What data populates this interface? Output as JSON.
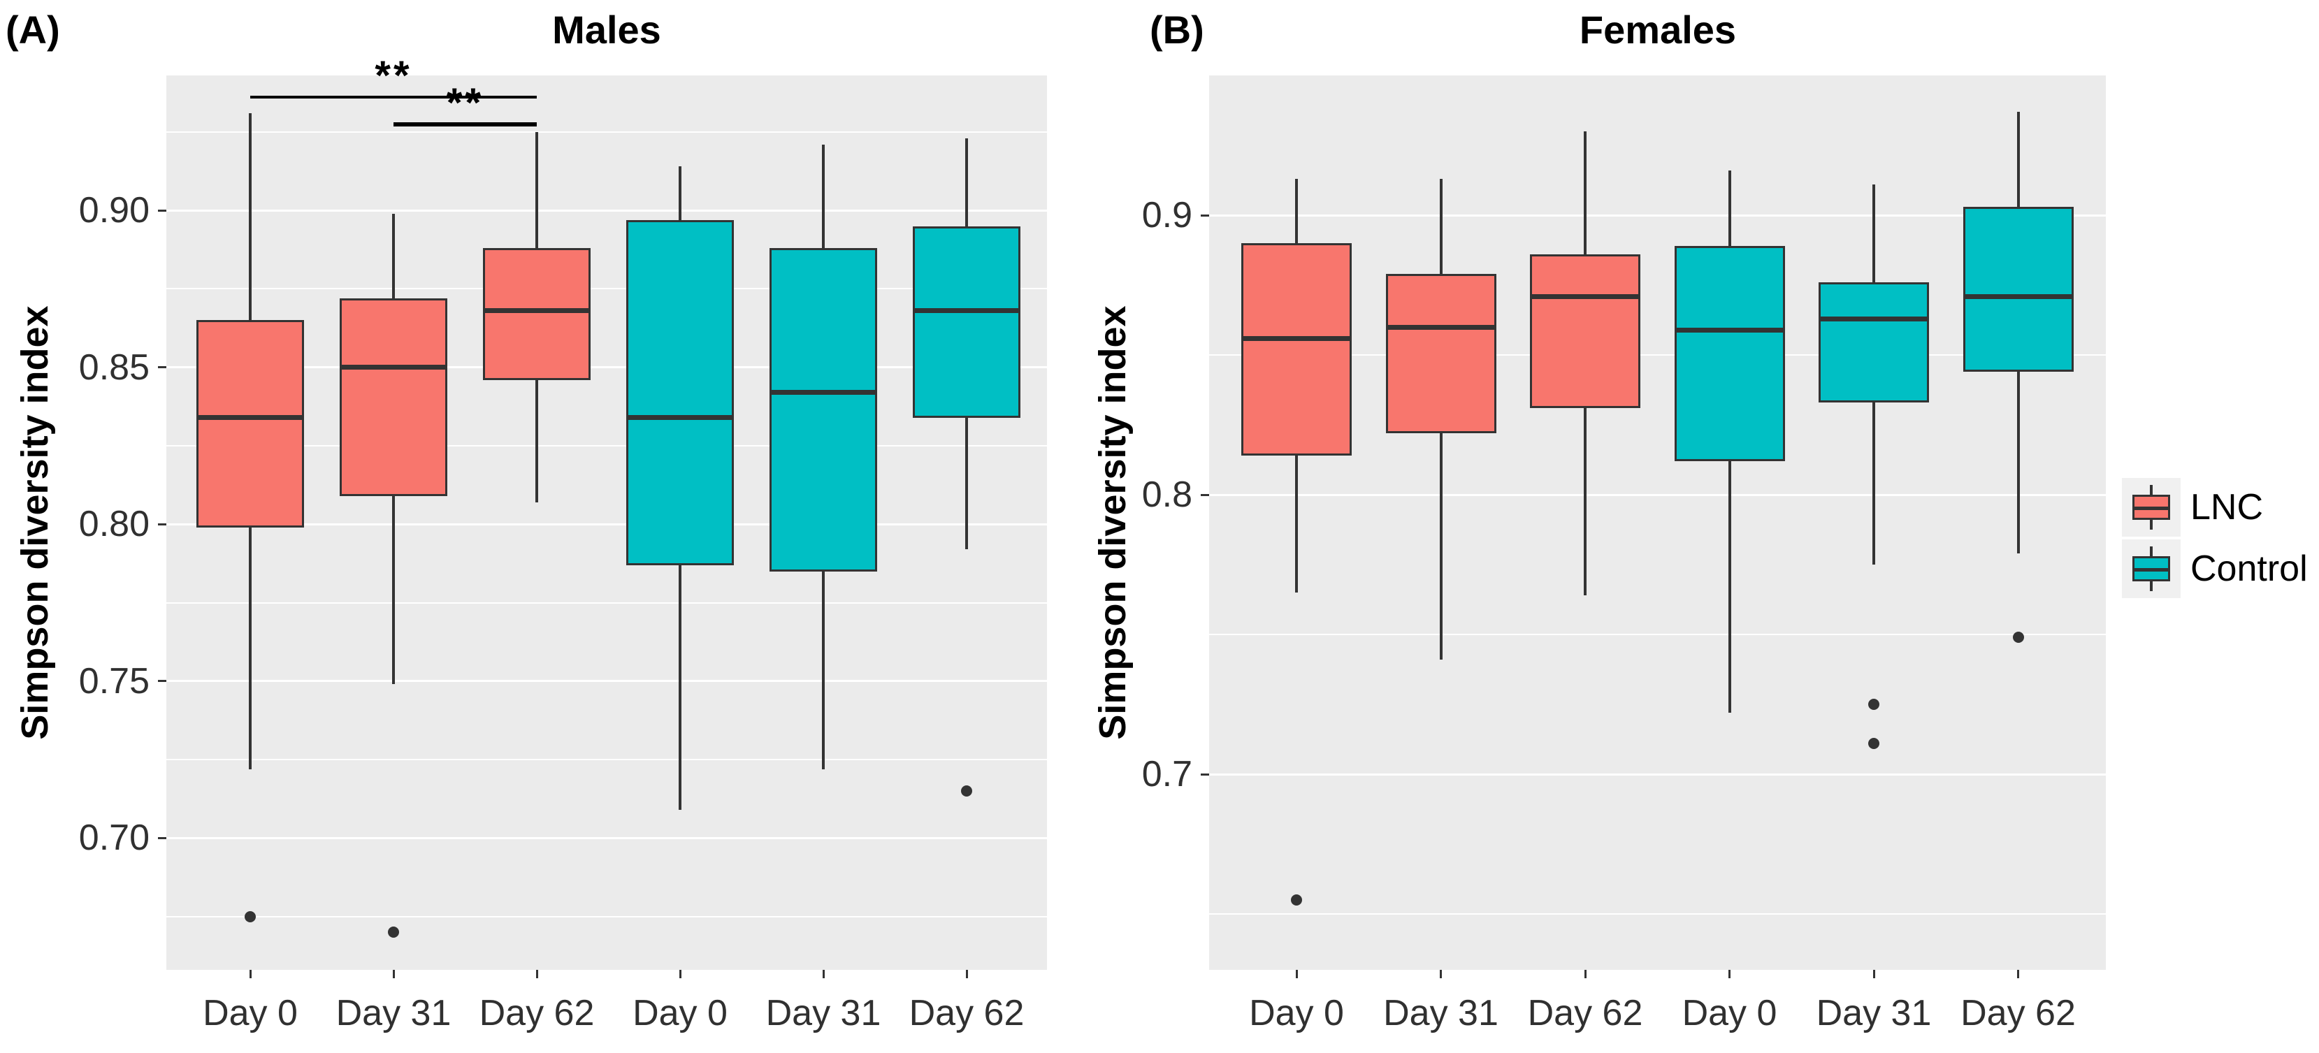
{
  "chart_data": {
    "type": "boxplot",
    "figure_kind": "two-panel grouped boxplot, ggplot grey theme",
    "legend": {
      "position": "right",
      "entries": [
        {
          "label": "LNC",
          "color": "#F8766D"
        },
        {
          "label": "Control",
          "color": "#00BFC4"
        }
      ]
    },
    "colors": {
      "lnc_fill": "#F8766D",
      "control_fill": "#00BFC4",
      "box_border": "#333333",
      "panel_background": "#EBEBEB",
      "gridline": "#FFFFFF",
      "tick_text": "#303030",
      "outlier_dot": "#333333",
      "legend_key_background": "#F0F0F0"
    },
    "panels": [
      {
        "panel_label": "(A)",
        "title": "Males",
        "ylabel": "Simpson diversity index",
        "grid": true,
        "ylim": [
          0.658,
          0.943
        ],
        "y_ticks": [
          {
            "value": 0.7,
            "label": "0.70"
          },
          {
            "value": 0.75,
            "label": "0.75"
          },
          {
            "value": 0.8,
            "label": "0.80"
          },
          {
            "value": 0.85,
            "label": "0.85"
          },
          {
            "value": 0.9,
            "label": "0.90"
          }
        ],
        "x_tick_labels": [
          "Day 0",
          "Day 31",
          "Day 62",
          "Day 0",
          "Day 31",
          "Day 62"
        ],
        "boxes": [
          {
            "group": "LNC",
            "category": "Day 0",
            "whisker_low": 0.722,
            "q1": 0.799,
            "median": 0.834,
            "q3": 0.865,
            "whisker_high": 0.931,
            "outliers": [
              0.675
            ]
          },
          {
            "group": "LNC",
            "category": "Day 31",
            "whisker_low": 0.749,
            "q1": 0.809,
            "median": 0.85,
            "q3": 0.872,
            "whisker_high": 0.899,
            "outliers": [
              0.67
            ]
          },
          {
            "group": "LNC",
            "category": "Day 62",
            "whisker_low": 0.807,
            "q1": 0.846,
            "median": 0.868,
            "q3": 0.888,
            "whisker_high": 0.925,
            "outliers": []
          },
          {
            "group": "Control",
            "category": "Day 0",
            "whisker_low": 0.709,
            "q1": 0.787,
            "median": 0.834,
            "q3": 0.897,
            "whisker_high": 0.914,
            "outliers": []
          },
          {
            "group": "Control",
            "category": "Day 31",
            "whisker_low": 0.722,
            "q1": 0.785,
            "median": 0.842,
            "q3": 0.888,
            "whisker_high": 0.921,
            "outliers": []
          },
          {
            "group": "Control",
            "category": "Day 62",
            "whisker_low": 0.792,
            "q1": 0.834,
            "median": 0.868,
            "q3": 0.895,
            "whisker_high": 0.923,
            "outliers": [
              0.715
            ]
          }
        ],
        "significance": [
          {
            "from_index": 0,
            "to_index": 2,
            "bar_value": 0.936,
            "label": "**",
            "bar_thickness": 4
          },
          {
            "from_index": 1,
            "to_index": 2,
            "bar_value": 0.9275,
            "label": "**",
            "bar_thickness": 6
          }
        ]
      },
      {
        "panel_label": "(B)",
        "title": "Females",
        "ylabel": "Simpson diversity index",
        "grid": true,
        "ylim": [
          0.63,
          0.95
        ],
        "y_ticks": [
          {
            "value": 0.7,
            "label": "0.7"
          },
          {
            "value": 0.8,
            "label": "0.8"
          },
          {
            "value": 0.9,
            "label": "0.9"
          }
        ],
        "x_tick_labels": [
          "Day 0",
          "Day 31",
          "Day 62",
          "Day 0",
          "Day 31",
          "Day 62"
        ],
        "boxes": [
          {
            "group": "LNC",
            "category": "Day 0",
            "whisker_low": 0.765,
            "q1": 0.814,
            "median": 0.856,
            "q3": 0.89,
            "whisker_high": 0.913,
            "outliers": [
              0.655
            ]
          },
          {
            "group": "LNC",
            "category": "Day 31",
            "whisker_low": 0.741,
            "q1": 0.822,
            "median": 0.86,
            "q3": 0.879,
            "whisker_high": 0.913,
            "outliers": []
          },
          {
            "group": "LNC",
            "category": "Day 62",
            "whisker_low": 0.764,
            "q1": 0.831,
            "median": 0.871,
            "q3": 0.886,
            "whisker_high": 0.93,
            "outliers": []
          },
          {
            "group": "Control",
            "category": "Day 0",
            "whisker_low": 0.722,
            "q1": 0.812,
            "median": 0.859,
            "q3": 0.889,
            "whisker_high": 0.916,
            "outliers": []
          },
          {
            "group": "Control",
            "category": "Day 31",
            "whisker_low": 0.775,
            "q1": 0.833,
            "median": 0.863,
            "q3": 0.876,
            "whisker_high": 0.911,
            "outliers": [
              0.725,
              0.711
            ]
          },
          {
            "group": "Control",
            "category": "Day 62",
            "whisker_low": 0.779,
            "q1": 0.844,
            "median": 0.871,
            "q3": 0.903,
            "whisker_high": 0.937,
            "outliers": [
              0.749
            ]
          }
        ],
        "significance": []
      }
    ]
  }
}
